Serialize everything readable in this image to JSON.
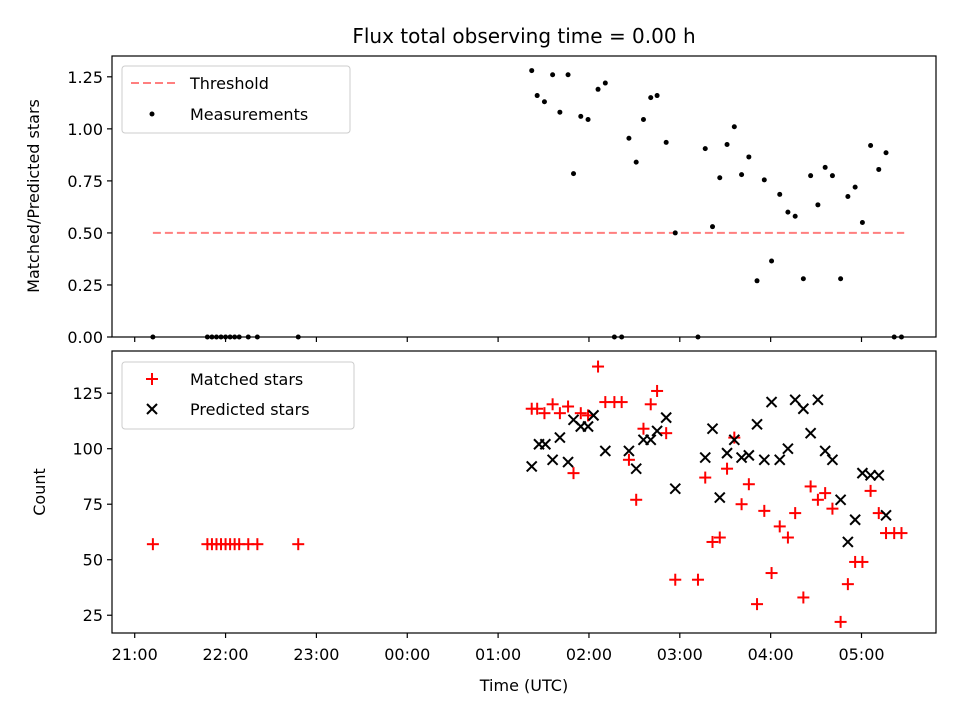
{
  "chart_data": [
    {
      "type": "scatter",
      "title": "Flux total observing time = 0.00 h",
      "xlabel": "",
      "ylabel": "Matched/Predicted stars",
      "x_unit": "hours relative to 00:00 UTC",
      "xlim": [
        -3.25,
        5.82
      ],
      "ylim": [
        0.0,
        1.35
      ],
      "yticks": [
        0.0,
        0.25,
        0.5,
        0.75,
        1.0,
        1.25
      ],
      "ytick_labels": [
        "0.00",
        "0.25",
        "0.50",
        "0.75",
        "1.00",
        "1.25"
      ],
      "grid": false,
      "legend_position": "top-left",
      "series": [
        {
          "name": "Threshold",
          "style": "dashed-line",
          "color": "#ff7f7f",
          "x": [
            -2.8,
            5.47
          ],
          "y": [
            0.5,
            0.5
          ]
        },
        {
          "name": "Measurements",
          "style": "dots",
          "color": "#000000",
          "x": [
            -2.8,
            -2.2,
            -2.15,
            -2.1,
            -2.05,
            -2.0,
            -1.95,
            -1.9,
            -1.85,
            -1.75,
            -1.65,
            -1.2,
            1.37,
            1.43,
            1.51,
            1.6,
            1.68,
            1.77,
            1.83,
            1.91,
            1.99,
            2.1,
            2.18,
            2.28,
            2.36,
            2.44,
            2.52,
            2.6,
            2.68,
            2.75,
            2.85,
            2.95,
            3.2,
            3.28,
            3.36,
            3.44,
            3.52,
            3.6,
            3.68,
            3.76,
            3.85,
            3.93,
            4.01,
            4.1,
            4.19,
            4.27,
            4.36,
            4.44,
            4.52,
            4.6,
            4.68,
            4.77,
            4.85,
            4.93,
            5.01,
            5.1,
            5.19,
            5.27,
            5.36,
            5.44
          ],
          "y": [
            0.0,
            0.0,
            0.0,
            0.0,
            0.0,
            0.0,
            0.0,
            0.0,
            0.0,
            0.0,
            0.0,
            0.0,
            1.28,
            1.16,
            1.13,
            1.26,
            1.08,
            1.26,
            0.785,
            1.06,
            1.045,
            1.19,
            1.22,
            0.0,
            0.0,
            0.955,
            0.84,
            1.045,
            1.15,
            1.16,
            0.935,
            0.5,
            0.0,
            0.905,
            0.53,
            0.765,
            0.925,
            1.01,
            0.78,
            0.865,
            0.27,
            0.755,
            0.365,
            0.685,
            0.6,
            0.58,
            0.28,
            0.775,
            0.635,
            0.815,
            0.775,
            0.28,
            0.675,
            0.72,
            0.55,
            0.92,
            0.805,
            0.885,
            0.0,
            0.0
          ]
        }
      ]
    },
    {
      "type": "scatter",
      "title": "",
      "xlabel": "Time (UTC)",
      "ylabel": "Count",
      "x_unit": "hours relative to 00:00 UTC",
      "xlim": [
        -3.25,
        5.82
      ],
      "ylim": [
        17,
        144
      ],
      "yticks": [
        25,
        50,
        75,
        100,
        125
      ],
      "ytick_labels": [
        "25",
        "50",
        "75",
        "100",
        "125"
      ],
      "xticks": [
        -3,
        -2,
        -1,
        0,
        1,
        2,
        3,
        4,
        5
      ],
      "xtick_labels": [
        "21:00",
        "22:00",
        "23:00",
        "00:00",
        "01:00",
        "02:00",
        "03:00",
        "04:00",
        "05:00"
      ],
      "grid": false,
      "legend_position": "top-left",
      "series": [
        {
          "name": "Matched stars",
          "marker": "plus",
          "color": "#ff0000",
          "x": [
            -2.8,
            -2.2,
            -2.15,
            -2.1,
            -2.05,
            -2.0,
            -1.95,
            -1.9,
            -1.85,
            -1.75,
            -1.65,
            -1.2,
            1.37,
            1.43,
            1.51,
            1.6,
            1.68,
            1.77,
            1.83,
            1.91,
            1.99,
            2.1,
            2.18,
            2.28,
            2.36,
            2.44,
            2.52,
            2.6,
            2.68,
            2.75,
            2.85,
            2.95,
            3.2,
            3.28,
            3.36,
            3.44,
            3.52,
            3.6,
            3.68,
            3.76,
            3.85,
            3.93,
            4.01,
            4.1,
            4.19,
            4.27,
            4.36,
            4.44,
            4.52,
            4.6,
            4.68,
            4.77,
            4.85,
            4.93,
            5.01,
            5.1,
            5.19,
            5.27,
            5.36,
            5.44
          ],
          "y": [
            57,
            57,
            57,
            57,
            57,
            57,
            57,
            57,
            57,
            57,
            57,
            57,
            118,
            118,
            116,
            120,
            116,
            119,
            89,
            116,
            115,
            137,
            121,
            121,
            121,
            95,
            77,
            109,
            120,
            126,
            107,
            41,
            41,
            87,
            58,
            60,
            91,
            105,
            75,
            84,
            30,
            72,
            44,
            65,
            60,
            71,
            33,
            83,
            77,
            80,
            73,
            22,
            39,
            49,
            49,
            81,
            71,
            62,
            62,
            62
          ]
        },
        {
          "name": "Predicted stars",
          "marker": "x",
          "color": "#000000",
          "x": [
            1.37,
            1.45,
            1.52,
            1.6,
            1.68,
            1.77,
            1.83,
            1.91,
            1.99,
            2.05,
            2.18,
            2.44,
            2.52,
            2.6,
            2.68,
            2.75,
            2.85,
            2.95,
            3.28,
            3.36,
            3.44,
            3.52,
            3.6,
            3.68,
            3.76,
            3.85,
            3.93,
            4.01,
            4.1,
            4.19,
            4.27,
            4.36,
            4.44,
            4.52,
            4.6,
            4.68,
            4.77,
            4.85,
            4.93,
            5.01,
            5.1,
            5.19,
            5.27
          ],
          "y": [
            92,
            102,
            102,
            95,
            105,
            94,
            113,
            110,
            110,
            115,
            99,
            99,
            91,
            104,
            104,
            108,
            114,
            82,
            96,
            109,
            78,
            98,
            104,
            96,
            97,
            111,
            95,
            121,
            95,
            100,
            122,
            118,
            107,
            122,
            99,
            95,
            77,
            58,
            68,
            89,
            88,
            88,
            70
          ]
        }
      ]
    }
  ]
}
